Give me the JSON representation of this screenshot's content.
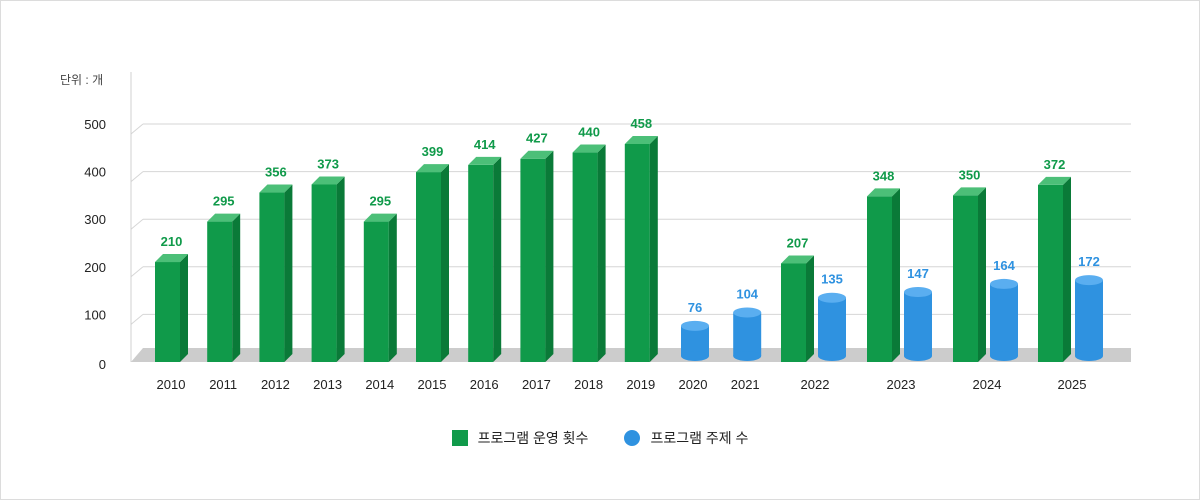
{
  "chart_data": {
    "type": "bar",
    "unit_label": "단위 : 개",
    "categories": [
      "2010",
      "2011",
      "2012",
      "2013",
      "2014",
      "2015",
      "2016",
      "2017",
      "2018",
      "2019",
      "2020",
      "2021",
      "2022",
      "2023",
      "2024",
      "2025"
    ],
    "series": [
      {
        "name": "프로그램 운영 횟수",
        "color": "#109a4a",
        "values": [
          210,
          295,
          356,
          373,
          295,
          399,
          414,
          427,
          440,
          458,
          null,
          null,
          207,
          348,
          350,
          372
        ]
      },
      {
        "name": "프로그램 주제 수",
        "color": "#2f92e0",
        "values": [
          null,
          null,
          null,
          null,
          null,
          null,
          null,
          null,
          null,
          null,
          76,
          104,
          135,
          147,
          164,
          172
        ]
      }
    ],
    "ylim": [
      0,
      500
    ],
    "yticks": [
      0,
      100,
      200,
      300,
      400,
      500
    ],
    "grid": true,
    "legend_position": "bottom-center"
  }
}
